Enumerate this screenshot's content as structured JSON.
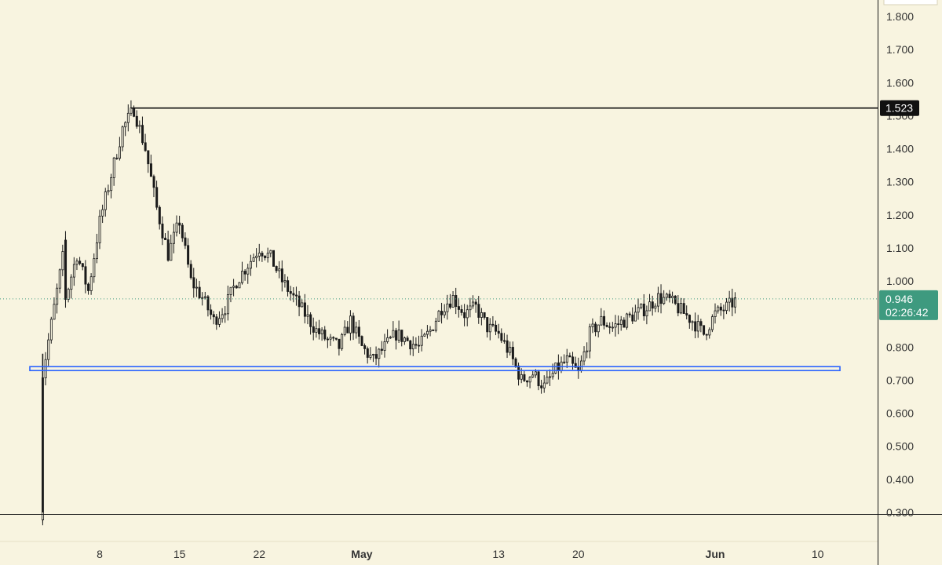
{
  "chart_data": {
    "type": "candlestick",
    "title": "",
    "xlabel": "",
    "ylabel": "",
    "ylim": [
      0.3,
      1.85
    ],
    "grid": false,
    "y_ticks": [
      "1.800",
      "1.700",
      "1.600",
      "1.500",
      "1.400",
      "1.300",
      "1.200",
      "1.100",
      "1.000",
      "0.900",
      "0.800",
      "0.700",
      "0.600",
      "0.500",
      "0.400",
      "0.300"
    ],
    "x_ticks": [
      {
        "label": "8",
        "date": "2024-04-08",
        "bold": false
      },
      {
        "label": "15",
        "date": "2024-04-15",
        "bold": false
      },
      {
        "label": "22",
        "date": "2024-04-22",
        "bold": false
      },
      {
        "label": "May",
        "date": "2024-05-01",
        "bold": true
      },
      {
        "label": "13",
        "date": "2024-05-13",
        "bold": false
      },
      {
        "label": "20",
        "date": "2024-05-20",
        "bold": false
      },
      {
        "label": "Jun",
        "date": "2024-06-01",
        "bold": true
      },
      {
        "label": "10",
        "date": "2024-06-10",
        "bold": false
      }
    ],
    "x_range": [
      "2024-04-02",
      "2024-06-12"
    ],
    "series_path": [
      [
        "2024-04-03",
        0.3
      ],
      [
        "2024-04-03",
        0.72
      ],
      [
        "2024-04-04",
        0.92
      ],
      [
        "2024-04-05",
        1.12
      ],
      [
        "2024-04-05",
        0.95
      ],
      [
        "2024-04-06",
        1.08
      ],
      [
        "2024-04-07",
        0.97
      ],
      [
        "2024-04-08",
        1.18
      ],
      [
        "2024-04-09",
        1.32
      ],
      [
        "2024-04-10",
        1.46
      ],
      [
        "2024-04-11",
        1.52
      ],
      [
        "2024-04-12",
        1.4
      ],
      [
        "2024-04-13",
        1.22
      ],
      [
        "2024-04-14",
        1.08
      ],
      [
        "2024-04-15",
        1.18
      ],
      [
        "2024-04-16",
        1.0
      ],
      [
        "2024-04-17",
        0.95
      ],
      [
        "2024-04-18",
        0.88
      ],
      [
        "2024-04-19",
        0.92
      ],
      [
        "2024-04-20",
        1.0
      ],
      [
        "2024-04-21",
        1.05
      ],
      [
        "2024-04-22",
        1.1
      ],
      [
        "2024-04-23",
        1.07
      ],
      [
        "2024-04-24",
        1.0
      ],
      [
        "2024-04-25",
        0.95
      ],
      [
        "2024-04-26",
        0.9
      ],
      [
        "2024-04-27",
        0.85
      ],
      [
        "2024-04-28",
        0.82
      ],
      [
        "2024-04-29",
        0.8
      ],
      [
        "2024-04-30",
        0.88
      ],
      [
        "2024-05-01",
        0.8
      ],
      [
        "2024-05-02",
        0.76
      ],
      [
        "2024-05-03",
        0.8
      ],
      [
        "2024-05-04",
        0.84
      ],
      [
        "2024-05-05",
        0.82
      ],
      [
        "2024-05-06",
        0.8
      ],
      [
        "2024-05-07",
        0.85
      ],
      [
        "2024-05-08",
        0.92
      ],
      [
        "2024-05-09",
        0.95
      ],
      [
        "2024-05-10",
        0.9
      ],
      [
        "2024-05-11",
        0.92
      ],
      [
        "2024-05-12",
        0.86
      ],
      [
        "2024-05-13",
        0.84
      ],
      [
        "2024-05-14",
        0.78
      ],
      [
        "2024-05-15",
        0.7
      ],
      [
        "2024-05-16",
        0.72
      ],
      [
        "2024-05-17",
        0.68
      ],
      [
        "2024-05-18",
        0.73
      ],
      [
        "2024-05-19",
        0.76
      ],
      [
        "2024-05-20",
        0.72
      ],
      [
        "2024-05-21",
        0.84
      ],
      [
        "2024-05-22",
        0.88
      ],
      [
        "2024-05-23",
        0.86
      ],
      [
        "2024-05-24",
        0.88
      ],
      [
        "2024-05-25",
        0.9
      ],
      [
        "2024-05-26",
        0.92
      ],
      [
        "2024-05-27",
        0.95
      ],
      [
        "2024-05-28",
        0.94
      ],
      [
        "2024-05-29",
        0.91
      ],
      [
        "2024-05-30",
        0.88
      ],
      [
        "2024-05-31",
        0.84
      ],
      [
        "2024-06-01",
        0.9
      ],
      [
        "2024-06-02",
        0.92
      ],
      [
        "2024-06-03",
        0.946
      ]
    ],
    "horizontal_lines": [
      {
        "name": "resistance",
        "value": 1.523,
        "label": "1.523",
        "color": "#111111"
      },
      {
        "name": "support",
        "value": 0.735,
        "color": "#2962ff"
      }
    ],
    "last_price": {
      "value": 0.946,
      "label": "0.946",
      "countdown": "02:26:42",
      "color": "#3e9a7f"
    }
  },
  "colors": {
    "background": "#f8f4e0",
    "axis_line": "#1a1a1a",
    "candles": "#1a1a1a",
    "support": "#2962ff",
    "last_price_tag": "#3e9a7f"
  }
}
